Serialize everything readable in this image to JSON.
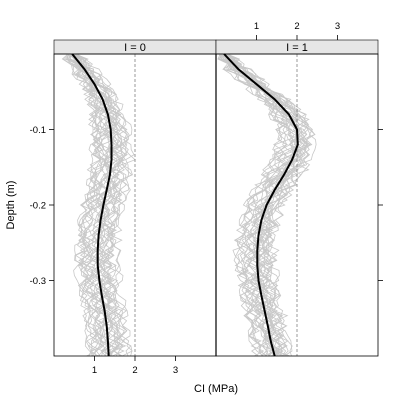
{
  "chart_data": {
    "type": "line",
    "xlabel": "CI (MPa)",
    "ylabel": "Depth (m)",
    "xlim": [
      0,
      4
    ],
    "ylim": [
      -0.4,
      0
    ],
    "x_ticks": [
      1,
      2,
      3
    ],
    "y_ticks": [
      -0.1,
      -0.2,
      -0.3
    ],
    "reference_line_x": 2,
    "grid": false,
    "colors": {
      "individual_profiles": "#c8c8c8",
      "mean_profile": "#000000",
      "strip_background": "#e6e6e6",
      "reference_line": "#808080"
    },
    "panels": [
      {
        "strip": "I = 0",
        "mean_profile": {
          "depth": [
            0,
            -0.02,
            -0.04,
            -0.06,
            -0.08,
            -0.1,
            -0.12,
            -0.14,
            -0.16,
            -0.18,
            -0.2,
            -0.22,
            -0.24,
            -0.26,
            -0.28,
            -0.3,
            -0.32,
            -0.34,
            -0.36,
            -0.38,
            -0.4
          ],
          "ci": [
            0.45,
            0.75,
            1.0,
            1.2,
            1.33,
            1.4,
            1.42,
            1.42,
            1.38,
            1.3,
            1.22,
            1.15,
            1.1,
            1.08,
            1.08,
            1.12,
            1.18,
            1.25,
            1.3,
            1.33,
            1.35
          ]
        }
      },
      {
        "strip": "I = 1",
        "mean_profile": {
          "depth": [
            0,
            -0.02,
            -0.04,
            -0.06,
            -0.08,
            -0.1,
            -0.12,
            -0.14,
            -0.16,
            -0.18,
            -0.2,
            -0.22,
            -0.24,
            -0.26,
            -0.28,
            -0.3,
            -0.32,
            -0.34,
            -0.36,
            -0.38,
            -0.4
          ],
          "ci": [
            0.2,
            0.55,
            1.0,
            1.45,
            1.8,
            2.0,
            2.02,
            1.88,
            1.68,
            1.45,
            1.25,
            1.12,
            1.05,
            1.02,
            1.02,
            1.05,
            1.12,
            1.2,
            1.28,
            1.35,
            1.45
          ]
        }
      }
    ]
  }
}
